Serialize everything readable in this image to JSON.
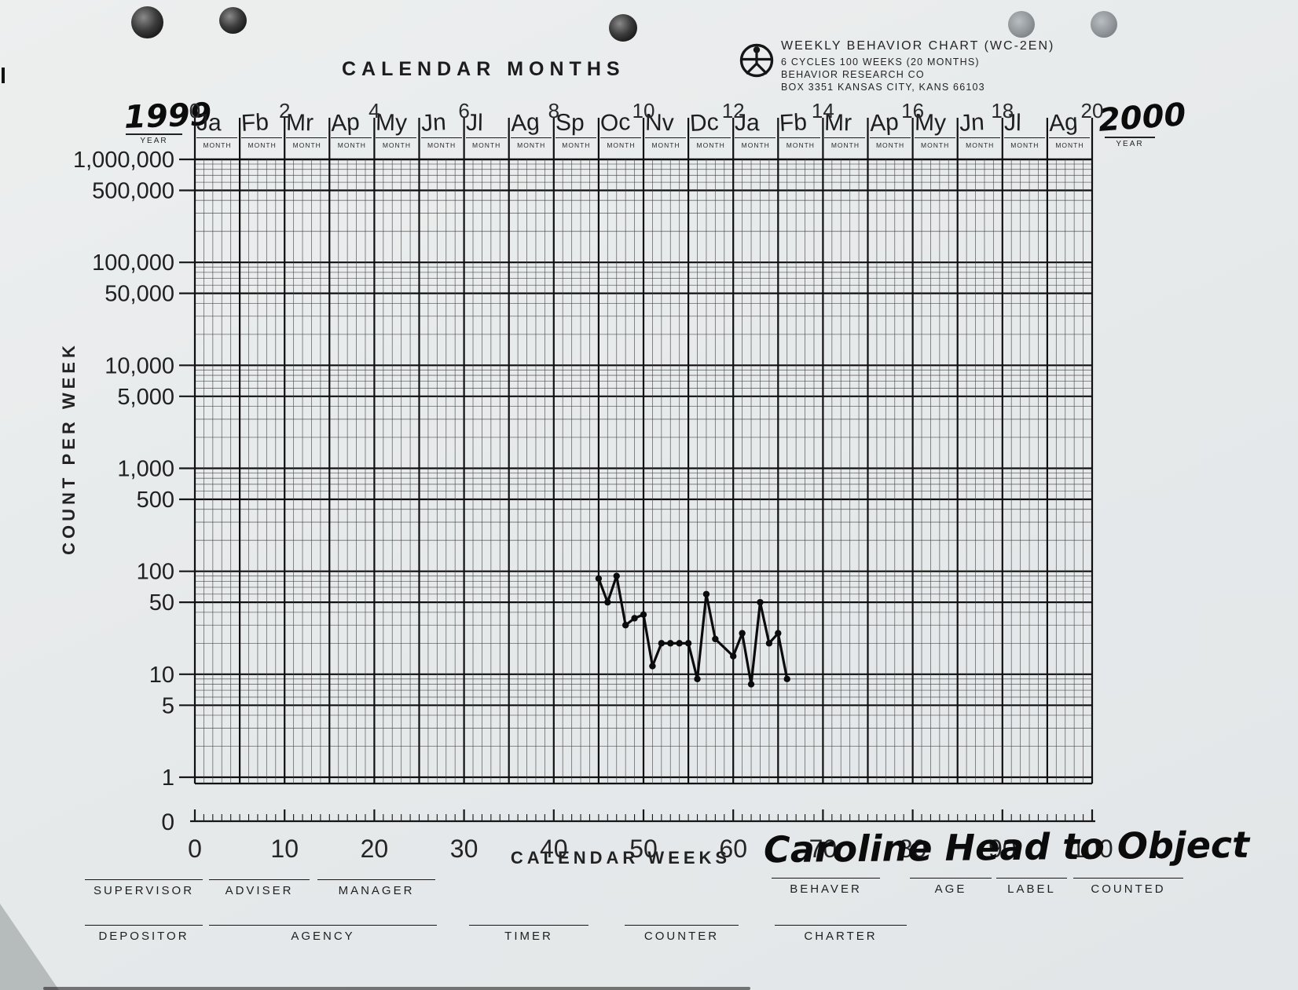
{
  "title": "CALENDAR MONTHS",
  "header": {
    "line1": "WEEKLY BEHAVIOR CHART (WC-2EN)",
    "line2": "6 CYCLES   100 WEEKS (20 MONTHS)",
    "line3": "BEHAVIOR RESEARCH CO",
    "line4": "BOX 3351   KANSAS CITY, KANS  66103",
    "logo": "stick-figure-in-circle"
  },
  "months": {
    "year_left": "1999",
    "year_right": "2000",
    "year_label": "YEAR",
    "month_label": "MONTH",
    "cycle_numbers": [
      0,
      2,
      4,
      6,
      8,
      10,
      12,
      14,
      16,
      18,
      20
    ],
    "handwritten": [
      "Ja",
      "Fb",
      "Mr",
      "Ap",
      "My",
      "Jn",
      "Jl",
      "Ag",
      "Sp",
      "Oc",
      "Nv",
      "Dc",
      "Ja",
      "Fb",
      "Mr",
      "Ap",
      "My",
      "Jn",
      "Jl",
      "Ag"
    ]
  },
  "y_axis": {
    "title": "COUNT PER WEEK",
    "tick_labels": [
      "1,000,000",
      "500,000",
      "100,000",
      "50,000",
      "10,000",
      "5,000",
      "1,000",
      "500",
      "100",
      "50",
      "10",
      "5",
      "1"
    ],
    "zero_label": "0"
  },
  "x_axis": {
    "title": "CALENDAR WEEKS",
    "tick_labels": [
      0,
      10,
      20,
      30,
      40,
      50,
      60,
      70,
      80,
      90,
      100
    ]
  },
  "chart_data": {
    "type": "line",
    "title": "WEEKLY BEHAVIOR CHART (WC-2EN)",
    "xlabel": "CALENDAR WEEKS",
    "ylabel": "COUNT PER WEEK",
    "y_scale": "log",
    "xlim": [
      0,
      100
    ],
    "ylim": [
      1,
      1000000
    ],
    "grid": "on",
    "series": [
      {
        "name": "Caroline — Head to Object (count per week)",
        "x_weeks": [
          45,
          46,
          47,
          48,
          49,
          50,
          51,
          52,
          53,
          54,
          55,
          56,
          57,
          58,
          60,
          61,
          62,
          63,
          64,
          65,
          66
        ],
        "counts": [
          85,
          50,
          90,
          30,
          35,
          38,
          12,
          20,
          20,
          20,
          20,
          9,
          60,
          22,
          15,
          25,
          8,
          50,
          20,
          25,
          9
        ]
      }
    ]
  },
  "form": {
    "row1_left": [
      "SUPERVISOR",
      "ADVISER",
      "MANAGER"
    ],
    "row1_right": [
      "BEHAVER",
      "AGE",
      "LABEL",
      "COUNTED"
    ],
    "row2": [
      "DEPOSITOR",
      "AGENCY",
      "TIMER",
      "COUNTER",
      "CHARTER"
    ],
    "handwritten_entry": "Caroline Head to Object"
  },
  "colors": {
    "paper": "#e8ebec",
    "grid_light": "#3f3f3f",
    "grid_heavy": "#101010",
    "ink": "#0b0b0b"
  }
}
